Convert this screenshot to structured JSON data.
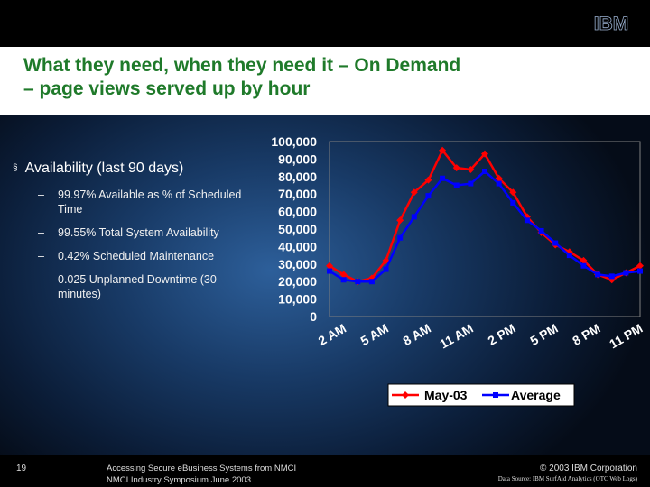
{
  "title": {
    "line1": "What they need, when they need it – On Demand",
    "line2": "– page views served up by hour"
  },
  "colors": {
    "title": "#1f7a2a",
    "series_may": "#ff0000",
    "series_avg": "#0000ff"
  },
  "bullets": {
    "main_marker": "§",
    "main": "Availability (last 90  days)",
    "sub_marker": "–",
    "subs": [
      "99.97% Available as % of Scheduled Time",
      "99.55% Total System Availability",
      "0.42% Scheduled Maintenance",
      "0.025 Unplanned Downtime (30 minutes)"
    ]
  },
  "chart_data": {
    "type": "line",
    "ylim": [
      0,
      100000
    ],
    "y_ticks": [
      "100,000",
      "90,000",
      "80,000",
      "70,000",
      "60,000",
      "50,000",
      "40,000",
      "30,000",
      "20,000",
      "10,000",
      "0"
    ],
    "x_tick_labels": [
      "2 AM",
      "5 AM",
      "8 AM",
      "11 AM",
      "2 PM",
      "5 PM",
      "8 PM",
      "11 PM"
    ],
    "legend": "bottom",
    "series": [
      {
        "name": "May-03",
        "color": "#ff0000",
        "values": [
          29000,
          24000,
          20000,
          22000,
          32000,
          55000,
          71000,
          78000,
          95000,
          85000,
          84000,
          93000,
          79000,
          71000,
          57000,
          48000,
          41000,
          37000,
          32000,
          24000,
          21000,
          25000,
          29000
        ]
      },
      {
        "name": "Average",
        "color": "#0000ff",
        "values": [
          26000,
          21000,
          20000,
          20000,
          27000,
          45000,
          57000,
          69000,
          79000,
          75000,
          76000,
          83000,
          76000,
          65000,
          55000,
          49000,
          42000,
          35000,
          29000,
          24000,
          23000,
          25000,
          26000
        ]
      }
    ]
  },
  "logo": {
    "text": "IBM"
  },
  "footer": {
    "page_number": "19",
    "left_line1": "Accessing Secure eBusiness Systems from NMCI",
    "left_line2": "NMCI Industry Symposium June 2003",
    "copyright": "© 2003 IBM Corporation",
    "data_source": "Data Source: IBM SurfAid Analytics (OTC Web Logs)"
  }
}
